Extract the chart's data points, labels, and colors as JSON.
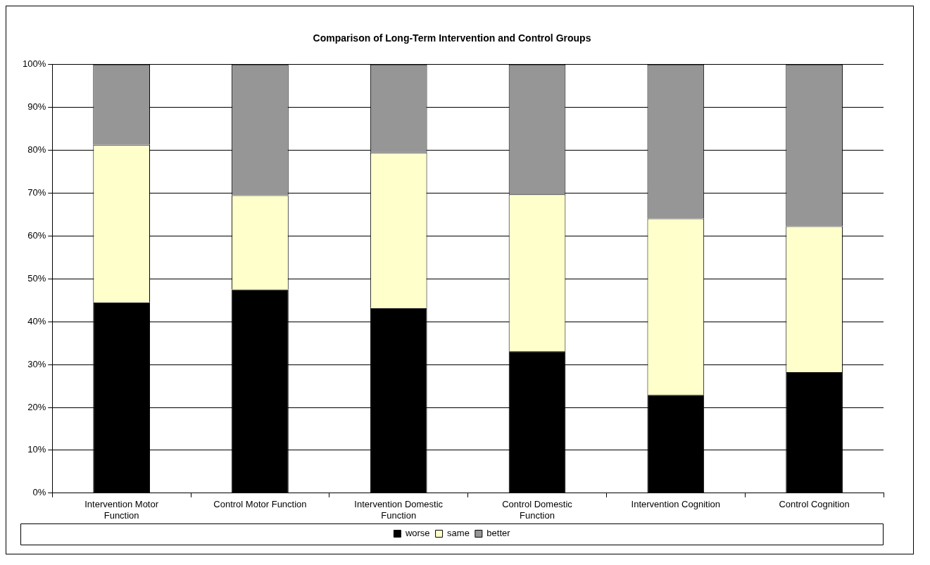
{
  "chart_data": {
    "type": "bar",
    "title": "Comparison of Long-Term Intervention and Control Groups",
    "categories": [
      "Intervention Motor Function",
      "Control Motor Function",
      "Intervention Domestic Function",
      "Control Domestic Function",
      "Intervention Cognition",
      "Control Cognition"
    ],
    "stacked": true,
    "series": [
      {
        "name": "worse",
        "color": "#000000",
        "values": [
          44.5,
          47.5,
          43.2,
          33.1,
          22.9,
          28.2
        ]
      },
      {
        "name": "same",
        "color": "#ffffcc",
        "values": [
          36.8,
          22.0,
          36.3,
          36.6,
          41.2,
          34.1
        ]
      },
      {
        "name": "better",
        "color": "#969696",
        "values": [
          18.7,
          30.5,
          20.5,
          30.3,
          35.9,
          37.7
        ]
      }
    ],
    "ylim": [
      0,
      100
    ],
    "yticks": [
      {
        "value": 0,
        "label": "0%"
      },
      {
        "value": 10,
        "label": "10%"
      },
      {
        "value": 20,
        "label": "20%"
      },
      {
        "value": 30,
        "label": "30%"
      },
      {
        "value": 40,
        "label": "40%"
      },
      {
        "value": 50,
        "label": "50%"
      },
      {
        "value": 60,
        "label": "60%"
      },
      {
        "value": 70,
        "label": "70%"
      },
      {
        "value": 80,
        "label": "80%"
      },
      {
        "value": 90,
        "label": "90%"
      },
      {
        "value": 100,
        "label": "100%"
      }
    ],
    "grid": "y",
    "legend": "bottom"
  }
}
